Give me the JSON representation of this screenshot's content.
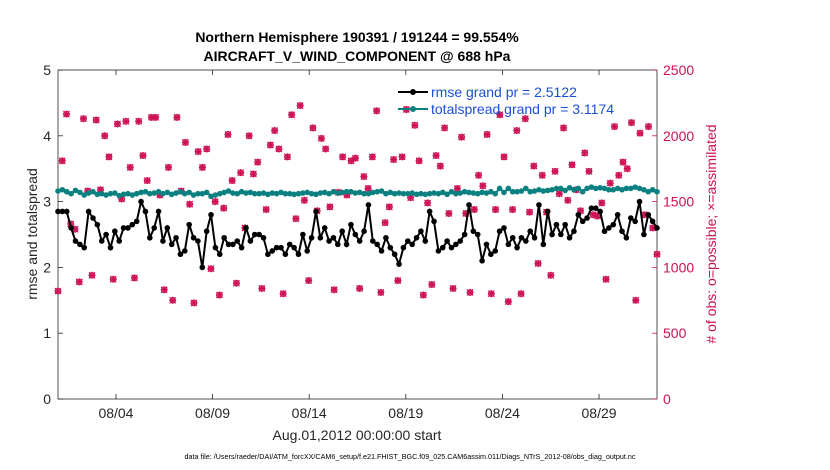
{
  "chart_data": {
    "type": "line",
    "title_line1": "Northern Hemisphere 190391 / 191244 = 99.554%",
    "title_line2": "AIRCRAFT_V_WIND_COMPONENT @ 688 hPa",
    "xlabel": "Aug.01,2012 00:00:00 start",
    "ylabel_left": "rmse and totalspread",
    "ylabel_right": "# of obs: o=possible; ×=assimilated",
    "footnote": "data file: /Users/raeder/DAI/ATM_forcXX/CAM6_setup/f.e21.FHIST_BGC.f09_025.CAM6assim.011/Diags_NTrS_2012-08/obs_diag_output.nc",
    "xlim": [
      1,
      32
    ],
    "ylim_left": [
      0,
      5
    ],
    "ylim_right": [
      0,
      2500
    ],
    "x_ticks": [
      {
        "x": 4,
        "label": "08/04"
      },
      {
        "x": 9,
        "label": "08/09"
      },
      {
        "x": 14,
        "label": "08/14"
      },
      {
        "x": 19,
        "label": "08/19"
      },
      {
        "x": 24,
        "label": "08/24"
      },
      {
        "x": 29,
        "label": "08/29"
      }
    ],
    "y_ticks_left": [
      "0",
      "1",
      "2",
      "3",
      "4",
      "5"
    ],
    "y_ticks_right": [
      "0",
      "500",
      "1000",
      "1500",
      "2000",
      "2500"
    ],
    "colors": {
      "rmse": "#000000",
      "spread": "#0a8080",
      "obs": "#cc1155",
      "legend_text": "#1a4fd6"
    },
    "series": [
      {
        "name": "rmse grand pr = 2.5122",
        "axis": "left",
        "values": [
          2.85,
          2.85,
          2.85,
          2.6,
          2.4,
          2.35,
          2.3,
          2.85,
          2.75,
          2.65,
          2.4,
          2.5,
          2.3,
          2.55,
          2.4,
          2.6,
          2.6,
          2.65,
          2.7,
          3.0,
          2.85,
          2.45,
          2.6,
          2.85,
          2.4,
          2.6,
          2.35,
          2.45,
          2.2,
          2.25,
          2.65,
          2.45,
          2.4,
          2.0,
          2.55,
          2.8,
          2.3,
          2.2,
          2.45,
          2.35,
          2.35,
          2.4,
          2.3,
          2.6,
          2.4,
          2.5,
          2.5,
          2.45,
          2.2,
          2.25,
          2.3,
          2.3,
          2.2,
          2.35,
          2.3,
          2.2,
          2.5,
          2.25,
          2.45,
          2.85,
          2.45,
          2.6,
          2.4,
          2.45,
          2.35,
          2.55,
          2.35,
          2.65,
          2.5,
          2.4,
          2.55,
          2.95,
          2.4,
          2.35,
          2.25,
          2.45,
          2.3,
          2.2,
          2.05,
          2.3,
          2.4,
          2.35,
          2.45,
          2.55,
          2.4,
          2.85,
          2.7,
          2.25,
          2.3,
          2.4,
          2.3,
          2.35,
          2.4,
          2.5,
          2.95,
          2.55,
          2.5,
          2.1,
          2.35,
          2.2,
          2.25,
          2.55,
          2.6,
          2.35,
          2.45,
          2.3,
          2.45,
          2.4,
          2.55,
          2.45,
          2.95,
          2.35,
          2.85,
          2.5,
          2.65,
          2.5,
          2.65,
          2.45,
          2.55,
          2.8,
          2.7,
          2.75,
          2.9,
          2.9,
          2.85,
          2.55,
          2.6,
          2.65,
          2.8,
          2.55,
          2.45,
          2.75,
          2.7,
          3.0,
          2.5,
          2.8,
          2.7,
          2.6
        ]
      },
      {
        "name": "totalspread grand pr = 3.1174",
        "axis": "left",
        "values": [
          3.16,
          3.18,
          3.15,
          3.12,
          3.17,
          3.14,
          3.1,
          3.13,
          3.15,
          3.11,
          3.12,
          3.1,
          3.12,
          3.13,
          3.09,
          3.11,
          3.12,
          3.1,
          3.12,
          3.14,
          3.15,
          3.12,
          3.13,
          3.15,
          3.12,
          3.14,
          3.11,
          3.13,
          3.15,
          3.12,
          3.14,
          3.1,
          3.12,
          3.12,
          3.14,
          3.08,
          3.1,
          3.12,
          3.14,
          3.16,
          3.13,
          3.12,
          3.15,
          3.13,
          3.14,
          3.12,
          3.12,
          3.13,
          3.11,
          3.13,
          3.12,
          3.14,
          3.12,
          3.12,
          3.11,
          3.12,
          3.13,
          3.14,
          3.12,
          3.11,
          3.13,
          3.14,
          3.12,
          3.15,
          3.13,
          3.14,
          3.15,
          3.15,
          3.13,
          3.14,
          3.12,
          3.12,
          3.14,
          3.15,
          3.16,
          3.12,
          3.14,
          3.12,
          3.13,
          3.12,
          3.12,
          3.13,
          3.11,
          3.12,
          3.11,
          3.12,
          3.13,
          3.12,
          3.14,
          3.11,
          3.15,
          3.12,
          3.13,
          3.15,
          3.14,
          3.13,
          3.12,
          3.14,
          3.13,
          3.15,
          3.12,
          3.2,
          3.14,
          3.2,
          3.15,
          3.15,
          3.16,
          3.2,
          3.15,
          3.16,
          3.18,
          3.16,
          3.17,
          3.18,
          3.2,
          3.2,
          3.17,
          3.21,
          3.18,
          3.2,
          3.15,
          3.2,
          3.22,
          3.2,
          3.21,
          3.2,
          3.18,
          3.18,
          3.2,
          3.18,
          3.2,
          3.2,
          3.22,
          3.2,
          3.18,
          3.15,
          3.18,
          3.15
        ]
      },
      {
        "name": "obs possible / assimilated",
        "axis": "right",
        "values": [
          820,
          1810,
          2165,
          1330,
          1290,
          890,
          2130,
          1580,
          940,
          2120,
          1590,
          2000,
          1840,
          910,
          2090,
          1520,
          2110,
          1760,
          920,
          2110,
          1850,
          1660,
          2140,
          2140,
          1550,
          830,
          1760,
          750,
          2140,
          1580,
          1950,
          1480,
          730,
          1880,
          1760,
          1900,
          990,
          1500,
          790,
          1450,
          2010,
          1660,
          880,
          1720,
          1300,
          2000,
          1710,
          1800,
          840,
          1440,
          1930,
          2040,
          1900,
          800,
          1840,
          2160,
          1370,
          2230,
          1510,
          900,
          2060,
          1430,
          1980,
          1900,
          1460,
          830,
          1570,
          1840,
          1550,
          1810,
          1830,
          840,
          1690,
          1600,
          1840,
          2190,
          810,
          1340,
          1460,
          1820,
          900,
          1840,
          2200,
          1530,
          2080,
          1810,
          790,
          1490,
          870,
          1850,
          1770,
          2060,
          1410,
          840,
          1600,
          1990,
          1410,
          810,
          1440,
          1700,
          1620,
          2010,
          800,
          1440,
          2160,
          1840,
          740,
          1440,
          2040,
          800,
          2130,
          1420,
          1770,
          1030,
          1700,
          1420,
          940,
          1730,
          1560,
          2060,
          1510,
          1780,
          1590,
          1430,
          1870,
          1730,
          1400,
          1390,
          1490,
          910,
          1640,
          2070,
          1700,
          1800,
          1750,
          2100,
          750,
          2020,
          1400,
          2070,
          1300,
          1100
        ]
      }
    ]
  }
}
